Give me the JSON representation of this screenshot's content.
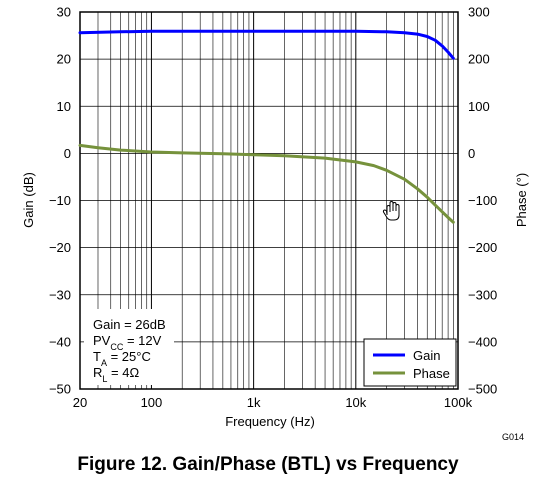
{
  "chart_data": {
    "type": "line",
    "title": "Figure 12. Gain/Phase (BTL) vs Frequency",
    "code": "G014",
    "xlabel": "Frequency (Hz)",
    "ylabel_left": "Gain (dB)",
    "ylabel_right": "Phase (°)",
    "xscale": "log",
    "xlim": [
      20,
      100000
    ],
    "ylim_left": [
      -50,
      30
    ],
    "ylim_right": [
      -500,
      300
    ],
    "grid": true,
    "legend_position": "bottom-right",
    "x_tick_labels": [
      {
        "value": 20,
        "label": "20"
      },
      {
        "value": 100,
        "label": "100"
      },
      {
        "value": 1000,
        "label": "1k"
      },
      {
        "value": 10000,
        "label": "10k"
      },
      {
        "value": 100000,
        "label": "100k"
      }
    ],
    "y_left_ticks": [
      30,
      20,
      10,
      0,
      -10,
      -20,
      -30,
      -40,
      -50
    ],
    "y_left_tick_labels": [
      "30",
      "20",
      "10",
      "0",
      "−10",
      "−20",
      "−30",
      "−40",
      "−50"
    ],
    "y_right_ticks": [
      300,
      200,
      100,
      0,
      -100,
      -200,
      -300,
      -400,
      -500
    ],
    "y_right_tick_labels": [
      "300",
      "200",
      "100",
      "0",
      "−100",
      "−200",
      "−300",
      "−400",
      "−500"
    ],
    "conditions": [
      {
        "main": "Gain = 26dB",
        "sub": "",
        "rest": ""
      },
      {
        "main": "PV",
        "sub": "CC",
        "rest": " = 12V"
      },
      {
        "main": "T",
        "sub": "A",
        "rest": " = 25°C"
      },
      {
        "main": "R",
        "sub": "L",
        "rest": " = 4Ω"
      }
    ],
    "series": [
      {
        "name": "Gain",
        "axis": "left",
        "color": "#0000ff",
        "x": [
          20,
          50,
          100,
          200,
          500,
          1000,
          2000,
          5000,
          10000,
          20000,
          30000,
          40000,
          50000,
          60000,
          70000,
          80000,
          90000
        ],
        "y": [
          25.6,
          25.8,
          25.9,
          25.9,
          25.9,
          25.9,
          25.9,
          25.9,
          25.9,
          25.8,
          25.6,
          25.3,
          24.8,
          24.0,
          22.8,
          21.5,
          20.2
        ]
      },
      {
        "name": "Phase",
        "axis": "right",
        "color": "#76923c",
        "x": [
          20,
          30,
          50,
          100,
          200,
          500,
          1000,
          2000,
          5000,
          10000,
          15000,
          20000,
          30000,
          40000,
          50000,
          60000,
          70000,
          80000,
          90000
        ],
        "y": [
          17,
          12,
          7,
          3,
          1,
          -1,
          -3,
          -5,
          -10,
          -18,
          -26,
          -36,
          -55,
          -75,
          -93,
          -110,
          -124,
          -136,
          -146
        ]
      }
    ]
  }
}
